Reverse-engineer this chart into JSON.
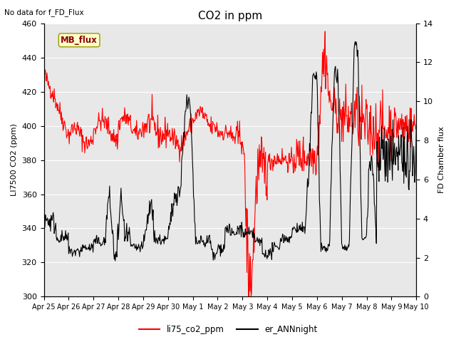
{
  "title": "CO2 in ppm",
  "ylabel_left": "LI7500 CO2 (ppm)",
  "ylabel_right": "FD Chamber flux",
  "no_data_text": "No data for f_FD_Flux",
  "mb_flux_label": "MB_flux",
  "legend_labels": [
    "li75_co2_ppm",
    "er_ANNnight"
  ],
  "ylim_left": [
    300,
    460
  ],
  "ylim_right": [
    0,
    14
  ],
  "yticks_left": [
    300,
    320,
    340,
    360,
    380,
    400,
    420,
    440,
    460
  ],
  "yticks_right": [
    0,
    2,
    4,
    6,
    8,
    10,
    12,
    14
  ],
  "xtick_labels": [
    "Apr 25",
    "Apr 26",
    "Apr 27",
    "Apr 28",
    "Apr 29",
    "Apr 30",
    "May 1",
    "May 2",
    "May 3",
    "May 4",
    "May 5",
    "May 6",
    "May 7",
    "May 8",
    "May 9",
    "May 10"
  ],
  "background_color": "#e8e8e8",
  "red_color": "#ff0000",
  "black_color": "#000000",
  "figsize": [
    6.4,
    4.8
  ],
  "dpi": 100
}
